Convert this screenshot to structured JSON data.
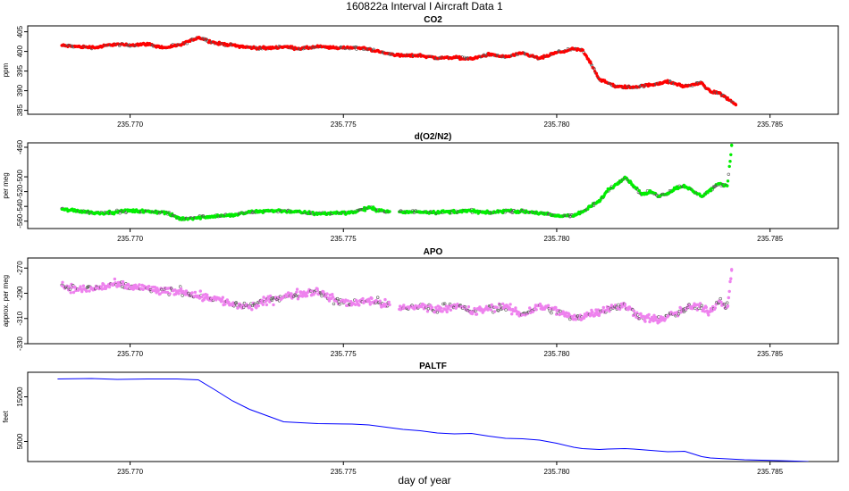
{
  "figure": {
    "title": "160822a   Interval I Aircraft Data 1",
    "xlabel": "day of year"
  },
  "chart_data": [
    {
      "type": "scatter",
      "title": "CO2",
      "ylabel": "ppm",
      "xlim": [
        235.7676,
        235.7866
      ],
      "ylim": [
        384,
        406.5
      ],
      "xticks": [
        235.77,
        235.775,
        235.78,
        235.785
      ],
      "xtick_labels": [
        "235.770",
        "235.775",
        "235.780",
        "235.785"
      ],
      "yticks": [
        385,
        390,
        395,
        400,
        405
      ],
      "ytick_labels": [
        "385",
        "390",
        "395",
        "400",
        "405"
      ],
      "series": [
        {
          "color": "#ff0000",
          "x": [
            235.7684,
            235.7688,
            235.7692,
            235.7696,
            235.77,
            235.7704,
            235.7708,
            235.7712,
            235.7716,
            235.772,
            235.7724,
            235.7728,
            235.7732,
            235.7736,
            235.774,
            235.7744,
            235.7748,
            235.7752,
            235.7756,
            235.776,
            235.7764,
            235.7768,
            235.7772,
            235.7776,
            235.778,
            235.7784,
            235.7788,
            235.7792,
            235.7796,
            235.78,
            235.7804,
            235.7806,
            235.7808,
            235.781,
            235.7814,
            235.7818,
            235.7822,
            235.7826,
            235.783,
            235.7834,
            235.7836,
            235.7838,
            235.784,
            235.7842
          ],
          "y": [
            401.5,
            401.2,
            401.0,
            401.8,
            401.6,
            401.9,
            400.9,
            401.7,
            403.6,
            402.1,
            401.6,
            401.0,
            400.8,
            401.2,
            400.7,
            401.2,
            400.9,
            401.0,
            400.6,
            399.5,
            398.9,
            399.0,
            398.3,
            398.5,
            398.1,
            399.2,
            398.6,
            399.5,
            398.2,
            399.7,
            400.6,
            400.3,
            397.0,
            392.9,
            391.0,
            390.9,
            391.5,
            392.3,
            391.1,
            392.0,
            389.7,
            389.5,
            388.0,
            386.5
          ]
        }
      ]
    },
    {
      "type": "scatter",
      "title": "d(O2/N2)",
      "ylabel": "per meg",
      "xlim": [
        235.7676,
        235.7866
      ],
      "ylim": [
        -570,
        -454
      ],
      "xticks": [
        235.77,
        235.775,
        235.78,
        235.785
      ],
      "xtick_labels": [
        "235.770",
        "235.775",
        "235.780",
        "235.785"
      ],
      "yticks": [
        -560,
        -540,
        -520,
        -500,
        -460
      ],
      "ytick_labels": [
        "-560",
        "-540",
        "-520",
        "-500",
        "-460"
      ],
      "series": [
        {
          "color": "#00ee00",
          "x": [
            235.7684,
            235.7688,
            235.7692,
            235.7696,
            235.77,
            235.7704,
            235.7708,
            235.7712,
            235.7716,
            235.772,
            235.7724,
            235.7728,
            235.7732,
            235.7736,
            235.774,
            235.7744,
            235.7748,
            235.7752,
            235.7756,
            235.776,
            235.7764,
            235.7768,
            235.7772,
            235.7776,
            235.778,
            235.7784,
            235.7788,
            235.7792,
            235.7796,
            235.78,
            235.7804,
            235.7806,
            235.7808,
            235.781,
            235.7812,
            235.7814,
            235.7816,
            235.7818,
            235.782,
            235.7822,
            235.7824,
            235.7826,
            235.7828,
            235.783,
            235.7832,
            235.7834,
            235.7836,
            235.7838,
            235.784,
            235.7841
          ],
          "y": [
            -544,
            -546,
            -549,
            -548,
            -546,
            -547,
            -548,
            -557,
            -555,
            -553,
            -552,
            -548,
            -546,
            -546,
            -548,
            -550,
            -549,
            -548,
            -542,
            -547,
            -548,
            -547,
            -548,
            -547,
            -546,
            -549,
            -546,
            -547,
            -549,
            -553,
            -552,
            -548,
            -540,
            -533,
            -518,
            -510,
            -500,
            -512,
            -524,
            -520,
            -526,
            -522,
            -515,
            -512,
            -520,
            -526,
            -518,
            -510,
            -512,
            -458
          ]
        }
      ]
    },
    {
      "type": "scatter",
      "title": "APO",
      "ylabel": "approx. per meg",
      "xlim": [
        235.7676,
        235.7866
      ],
      "ylim": [
        -330,
        -262
      ],
      "xticks": [
        235.77,
        235.775,
        235.78,
        235.785
      ],
      "xtick_labels": [
        "235.770",
        "235.775",
        "235.780",
        "235.785"
      ],
      "yticks": [
        -330,
        -310,
        -290,
        -270
      ],
      "ytick_labels": [
        "-330",
        "-310",
        "-290",
        "-270"
      ],
      "series": [
        {
          "color": "#ee82ee",
          "x": [
            235.7684,
            235.7688,
            235.7692,
            235.7696,
            235.77,
            235.7704,
            235.7708,
            235.7712,
            235.7716,
            235.772,
            235.7724,
            235.7728,
            235.7732,
            235.7736,
            235.774,
            235.7744,
            235.7748,
            235.7752,
            235.7756,
            235.776,
            235.7764,
            235.7768,
            235.7772,
            235.7776,
            235.778,
            235.7784,
            235.7788,
            235.7792,
            235.7796,
            235.78,
            235.7804,
            235.7808,
            235.7812,
            235.7816,
            235.782,
            235.7824,
            235.7828,
            235.7832,
            235.7836,
            235.7838,
            235.784,
            235.7841
          ],
          "y": [
            -284,
            -287,
            -286,
            -283,
            -285,
            -286,
            -289,
            -288,
            -292,
            -294,
            -299,
            -301,
            -296,
            -293,
            -290,
            -288,
            -296,
            -298,
            -295,
            -299,
            -302,
            -300,
            -303,
            -299,
            -305,
            -302,
            -301,
            -307,
            -300,
            -304,
            -310,
            -306,
            -302,
            -300,
            -309,
            -311,
            -306,
            -300,
            -304,
            -296,
            -301,
            -272
          ]
        }
      ]
    },
    {
      "type": "line",
      "title": "PALTF",
      "ylabel": "feet",
      "xlim": [
        235.7676,
        235.7866
      ],
      "ylim": [
        500,
        20500
      ],
      "xticks": [
        235.77,
        235.775,
        235.78,
        235.785
      ],
      "xtick_labels": [
        "235.770",
        "235.775",
        "235.780",
        "235.785"
      ],
      "yticks": [
        5000,
        15000
      ],
      "ytick_labels": [
        "5000",
        "15000"
      ],
      "series": [
        {
          "color": "#0000ff",
          "x": [
            235.7683,
            235.7691,
            235.7697,
            235.7704,
            235.7708,
            235.7711,
            235.7716,
            235.772,
            235.7724,
            235.7728,
            235.7732,
            235.7736,
            235.7738,
            235.7744,
            235.7752,
            235.7756,
            235.776,
            235.7764,
            235.7768,
            235.7772,
            235.7776,
            235.778,
            235.7784,
            235.7788,
            235.7792,
            235.7796,
            235.78,
            235.7804,
            235.7806,
            235.781,
            235.7812,
            235.7816,
            235.7818,
            235.7822,
            235.7826,
            235.783,
            235.7832,
            235.7834,
            235.7836,
            235.784,
            235.7844,
            235.7848,
            235.7852,
            235.7856,
            235.7859
          ],
          "y": [
            19000,
            19100,
            18900,
            19000,
            19000,
            19000,
            18800,
            16500,
            14100,
            12200,
            10800,
            9400,
            9300,
            9000,
            8900,
            8700,
            8200,
            7700,
            7400,
            6900,
            6700,
            6800,
            6200,
            5700,
            5600,
            5300,
            4600,
            3700,
            3400,
            3200,
            3300,
            3400,
            3300,
            3000,
            2700,
            2800,
            2200,
            1600,
            1300,
            1100,
            900,
            800,
            700,
            600,
            500
          ]
        }
      ]
    }
  ]
}
